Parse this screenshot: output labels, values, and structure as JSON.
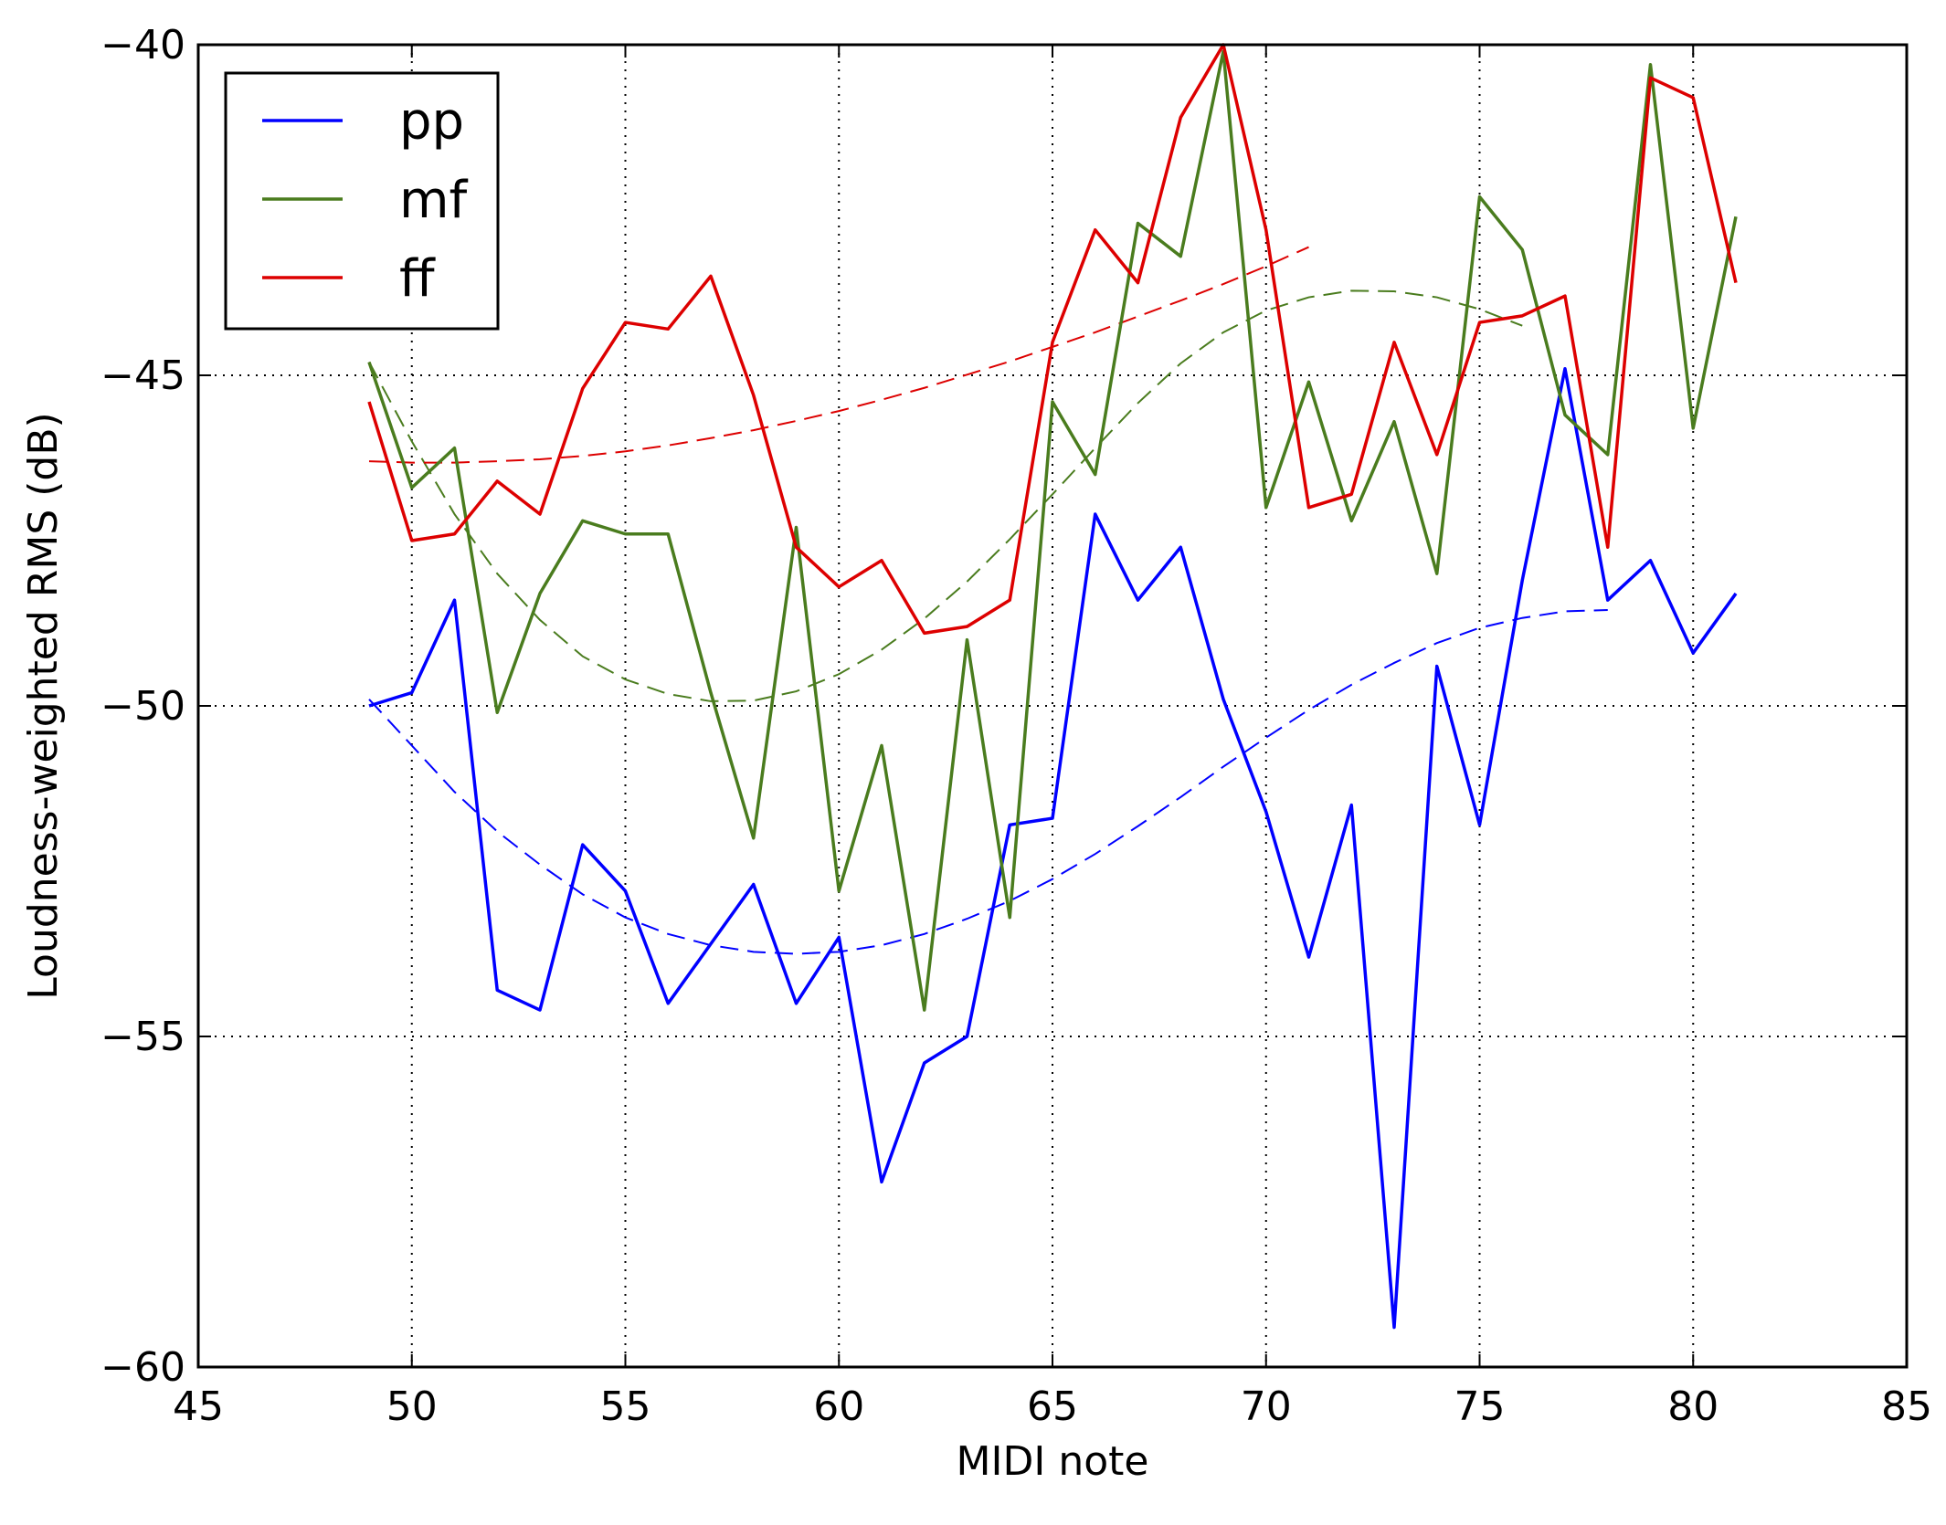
{
  "chart_data": {
    "type": "line",
    "title": "",
    "xlabel": "MIDI note",
    "ylabel": "Loudness-weighted RMS (dB)",
    "xlim": [
      45,
      85
    ],
    "ylim": [
      -60,
      -40
    ],
    "xticks": [
      45,
      50,
      55,
      60,
      65,
      70,
      75,
      80,
      85
    ],
    "yticks": [
      -60,
      -55,
      -50,
      -45,
      -40
    ],
    "xtick_labels": [
      "45",
      "50",
      "55",
      "60",
      "65",
      "70",
      "75",
      "80",
      "85"
    ],
    "ytick_labels": [
      "−60",
      "−55",
      "−50",
      "−45",
      "−40"
    ],
    "grid": true,
    "legend_position": "top-left",
    "x": [
      49,
      50,
      51,
      52,
      53,
      54,
      55,
      56,
      57,
      58,
      59,
      60,
      61,
      62,
      63,
      64,
      65,
      66,
      67,
      68,
      69,
      70,
      71,
      72,
      73,
      74,
      75,
      76,
      77,
      78,
      79,
      80,
      81
    ],
    "series": [
      {
        "name": "pp",
        "color": "#0000ff",
        "values": [
          -50.0,
          -49.8,
          -48.4,
          -54.3,
          -54.6,
          -52.1,
          -52.8,
          -54.5,
          -53.6,
          -52.7,
          -54.5,
          -53.5,
          -57.2,
          -55.4,
          -55.0,
          -51.8,
          -51.7,
          -47.1,
          -48.4,
          -47.6,
          -49.9,
          -51.6,
          -53.8,
          -51.5,
          -59.4,
          -49.4,
          -51.8,
          -48.1,
          -44.9,
          -48.4,
          -47.8,
          -49.2,
          -48.3
        ],
        "trend": [
          -49.9,
          -50.6,
          -51.3,
          -51.9,
          -52.4,
          -52.85,
          -53.2,
          -53.45,
          -53.62,
          -53.72,
          -53.75,
          -53.72,
          -53.62,
          -53.45,
          -53.22,
          -52.95,
          -52.62,
          -52.24,
          -51.82,
          -51.38,
          -50.92,
          -50.48,
          -50.06,
          -49.68,
          -49.35,
          -49.05,
          -48.82,
          -48.67,
          -48.57,
          -48.55
        ]
      },
      {
        "name": "mf",
        "color": "#4a7c1e",
        "values": [
          -44.8,
          -46.7,
          -46.1,
          -50.1,
          -48.3,
          -47.2,
          -47.4,
          -47.4,
          -49.8,
          -52.0,
          -47.3,
          -52.8,
          -50.6,
          -54.6,
          -49.0,
          -53.2,
          -45.4,
          -46.5,
          -42.7,
          -43.2,
          -40.1,
          -47.0,
          -45.1,
          -47.2,
          -45.7,
          -48.0,
          -42.3,
          -43.1,
          -45.6,
          -46.2,
          -40.3,
          -45.8,
          -42.6
        ],
        "trend": [
          -44.8,
          -46.0,
          -47.1,
          -48.0,
          -48.7,
          -49.25,
          -49.6,
          -49.82,
          -49.93,
          -49.92,
          -49.78,
          -49.52,
          -49.15,
          -48.68,
          -48.12,
          -47.48,
          -46.8,
          -46.1,
          -45.42,
          -44.82,
          -44.35,
          -44.02,
          -43.82,
          -43.72,
          -43.73,
          -43.82,
          -44.0,
          -44.25
        ]
      },
      {
        "name": "ff",
        "color": "#dd0000",
        "values": [
          -45.4,
          -47.5,
          -47.4,
          -46.6,
          -47.1,
          -45.2,
          -44.2,
          -44.3,
          -43.5,
          -45.3,
          -47.6,
          -48.2,
          -47.8,
          -48.9,
          -48.8,
          -48.4,
          -44.5,
          -42.8,
          -43.6,
          -41.1,
          -40.0,
          -42.8,
          -47.0,
          -46.8,
          -44.5,
          -46.2,
          -44.2,
          -44.1,
          -43.8,
          -47.6,
          -40.5,
          -40.8,
          -43.6
        ],
        "trend": [
          -46.3,
          -46.32,
          -46.32,
          -46.3,
          -46.27,
          -46.22,
          -46.15,
          -46.06,
          -45.95,
          -45.83,
          -45.69,
          -45.54,
          -45.37,
          -45.19,
          -44.99,
          -44.79,
          -44.57,
          -44.35,
          -44.11,
          -43.87,
          -43.62,
          -43.35,
          -43.06
        ]
      }
    ]
  }
}
